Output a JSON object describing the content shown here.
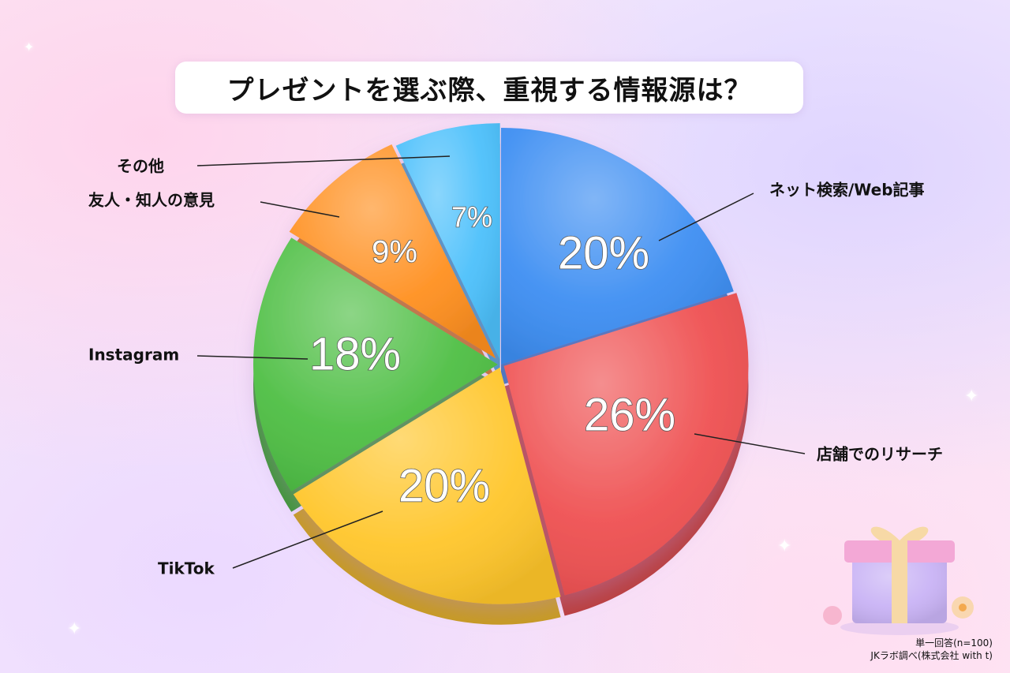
{
  "title": "プレゼントを選ぶ際、重視する情報源は？",
  "chart_data": {
    "type": "pie",
    "title": "プレゼントを選ぶ際、重視する情報源は？",
    "categories": [
      "ネット検索/Web記事",
      "店舗でのリサーチ",
      "TikTok",
      "Instagram",
      "友人・知人の意見",
      "その他"
    ],
    "values": [
      20,
      26,
      20,
      18,
      9,
      7
    ],
    "value_labels": [
      "20%",
      "26%",
      "20%",
      "18%",
      "9%",
      "7%"
    ],
    "colors": [
      "#3d8ef2",
      "#ef5152",
      "#ffc62b",
      "#4fbf45",
      "#ff9020",
      "#4cc0fb"
    ],
    "start": "12 o'clock, clockwise"
  },
  "footnote": {
    "line1": "単一回答(n=100)",
    "line2": "JKラボ調べ(株式会社 with t)"
  },
  "decor": {
    "gift": "gift-box-icon",
    "sparkles": "sparkle-icon"
  }
}
